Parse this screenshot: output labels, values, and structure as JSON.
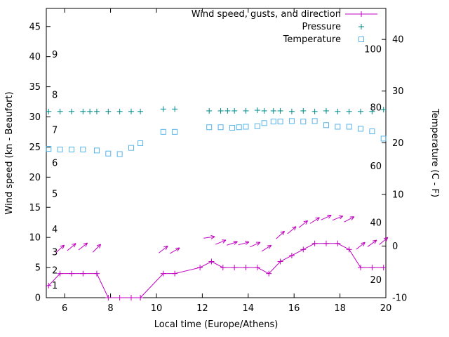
{
  "chart_data": {
    "type": "line",
    "legend": [
      {
        "label": "Wind speed, gusts, and direction",
        "marker": "line-plus",
        "color": "#c000c0"
      },
      {
        "label": "Pressure",
        "marker": "plus",
        "color": "#008b8b"
      },
      {
        "label": "Temperature",
        "marker": "square",
        "color": "#56b4e9"
      }
    ],
    "legend_position": "top-right-inside",
    "grid": false,
    "axes": {
      "x": {
        "label": "Local time (Europe/Athens)",
        "range": [
          5.2,
          20
        ],
        "ticks": [
          6,
          8,
          10,
          12,
          14,
          16,
          18,
          20
        ]
      },
      "y_left": {
        "label": "Wind speed (kn - Beaufort)",
        "range": [
          0,
          48
        ],
        "ticks": [
          0,
          5,
          10,
          15,
          20,
          25,
          30,
          35,
          40,
          45
        ]
      },
      "y_right": {
        "label": "Temperature (C - F)",
        "range": [
          -10,
          46
        ],
        "ticks": [
          -10,
          0,
          10,
          20,
          30,
          40
        ]
      }
    },
    "inner_labels": {
      "beaufort": [
        {
          "text": "1",
          "y": 2.0
        },
        {
          "text": "2",
          "y": 4.5
        },
        {
          "text": "3",
          "y": 7.5
        },
        {
          "text": "4",
          "y": 11.3
        },
        {
          "text": "5",
          "y": 17.2
        },
        {
          "text": "6",
          "y": 22.3
        },
        {
          "text": "7",
          "y": 27.8
        },
        {
          "text": "8",
          "y": 33.6
        },
        {
          "text": "9",
          "y": 40.3
        }
      ],
      "fahrenheit": [
        {
          "text": "20",
          "y": 2.9
        },
        {
          "text": "40",
          "y": 12.4
        },
        {
          "text": "60",
          "y": 21.8
        },
        {
          "text": "80",
          "y": 31.5
        },
        {
          "text": "100",
          "y": 41.2
        }
      ]
    },
    "series": {
      "wind_speed": {
        "name": "Wind speed",
        "color": "#c000c0",
        "axis": "left",
        "marker": "plus",
        "points": [
          [
            5.3,
            2
          ],
          [
            5.8,
            4
          ],
          [
            6.3,
            4
          ],
          [
            6.8,
            4
          ],
          [
            7.4,
            4
          ],
          [
            7.9,
            0
          ],
          [
            8.4,
            0
          ],
          [
            8.9,
            0
          ],
          [
            9.3,
            0
          ],
          [
            10.3,
            4
          ],
          [
            10.8,
            4
          ],
          [
            11.9,
            5
          ],
          [
            12.4,
            6
          ],
          [
            12.9,
            5
          ],
          [
            13.4,
            5
          ],
          [
            13.9,
            5
          ],
          [
            14.4,
            5
          ],
          [
            14.9,
            4
          ],
          [
            15.4,
            6
          ],
          [
            15.9,
            7
          ],
          [
            16.4,
            8
          ],
          [
            16.9,
            9
          ],
          [
            17.4,
            9
          ],
          [
            17.9,
            9
          ],
          [
            18.4,
            8
          ],
          [
            18.9,
            5
          ],
          [
            19.4,
            5
          ],
          [
            19.9,
            5
          ]
        ]
      },
      "gust_arrows": {
        "name": "Gusts and direction",
        "color": "#c000c0",
        "axis": "left",
        "arrows": [
          [
            5.8,
            8.1,
            42
          ],
          [
            6.3,
            8.4,
            40
          ],
          [
            6.8,
            8.5,
            38
          ],
          [
            7.4,
            8.2,
            45
          ],
          [
            10.3,
            8.0,
            38
          ],
          [
            10.8,
            7.8,
            30
          ],
          [
            12.3,
            10.0,
            8
          ],
          [
            12.8,
            9.2,
            22
          ],
          [
            13.3,
            9.0,
            18
          ],
          [
            13.8,
            9.0,
            15
          ],
          [
            14.3,
            8.8,
            25
          ],
          [
            14.8,
            8.2,
            32
          ],
          [
            15.4,
            10.4,
            42
          ],
          [
            15.9,
            11.2,
            40
          ],
          [
            16.4,
            12.2,
            38
          ],
          [
            16.9,
            12.8,
            32
          ],
          [
            17.4,
            13.3,
            25
          ],
          [
            17.9,
            13.2,
            22
          ],
          [
            18.4,
            13.0,
            28
          ],
          [
            18.9,
            8.6,
            38
          ],
          [
            19.4,
            9.0,
            36
          ],
          [
            19.9,
            9.4,
            40
          ]
        ]
      },
      "pressure": {
        "name": "Pressure",
        "color": "#008b8b",
        "axis": "left",
        "marker": "plus",
        "points": [
          [
            5.3,
            30.9
          ],
          [
            5.8,
            30.9
          ],
          [
            6.3,
            30.9
          ],
          [
            6.8,
            30.9
          ],
          [
            7.1,
            30.9
          ],
          [
            7.4,
            30.9
          ],
          [
            7.9,
            30.9
          ],
          [
            8.4,
            30.9
          ],
          [
            8.9,
            30.9
          ],
          [
            9.3,
            30.9
          ],
          [
            10.3,
            31.3
          ],
          [
            10.8,
            31.3
          ],
          [
            12.3,
            31.0
          ],
          [
            12.8,
            31.0
          ],
          [
            13.1,
            31.0
          ],
          [
            13.4,
            31.0
          ],
          [
            13.9,
            31.0
          ],
          [
            14.4,
            31.1
          ],
          [
            14.7,
            31.0
          ],
          [
            15.1,
            31.0
          ],
          [
            15.4,
            31.0
          ],
          [
            15.9,
            30.9
          ],
          [
            16.4,
            31.0
          ],
          [
            16.9,
            30.9
          ],
          [
            17.4,
            31.0
          ],
          [
            17.9,
            30.9
          ],
          [
            18.4,
            30.9
          ],
          [
            18.9,
            30.9
          ],
          [
            19.4,
            30.9
          ],
          [
            19.9,
            31.2
          ]
        ]
      },
      "temperature": {
        "name": "Temperature",
        "color": "#56b4e9",
        "axis": "right",
        "marker": "square",
        "points_celsius": [
          [
            5.3,
            18.8
          ],
          [
            5.8,
            18.7
          ],
          [
            6.3,
            18.7
          ],
          [
            6.8,
            18.7
          ],
          [
            7.4,
            18.5
          ],
          [
            7.9,
            17.9
          ],
          [
            8.4,
            17.8
          ],
          [
            8.9,
            19.0
          ],
          [
            9.3,
            19.9
          ],
          [
            10.3,
            22.1
          ],
          [
            10.8,
            22.1
          ],
          [
            12.3,
            23.0
          ],
          [
            12.8,
            23.0
          ],
          [
            13.3,
            22.9
          ],
          [
            13.6,
            23.0
          ],
          [
            13.9,
            23.1
          ],
          [
            14.4,
            23.2
          ],
          [
            14.7,
            23.8
          ],
          [
            15.1,
            24.1
          ],
          [
            15.4,
            24.1
          ],
          [
            15.9,
            24.2
          ],
          [
            16.4,
            24.1
          ],
          [
            16.9,
            24.2
          ],
          [
            17.4,
            23.4
          ],
          [
            17.9,
            23.1
          ],
          [
            18.4,
            23.1
          ],
          [
            18.9,
            22.7
          ],
          [
            19.4,
            22.2
          ],
          [
            19.9,
            20.8
          ]
        ]
      }
    }
  }
}
